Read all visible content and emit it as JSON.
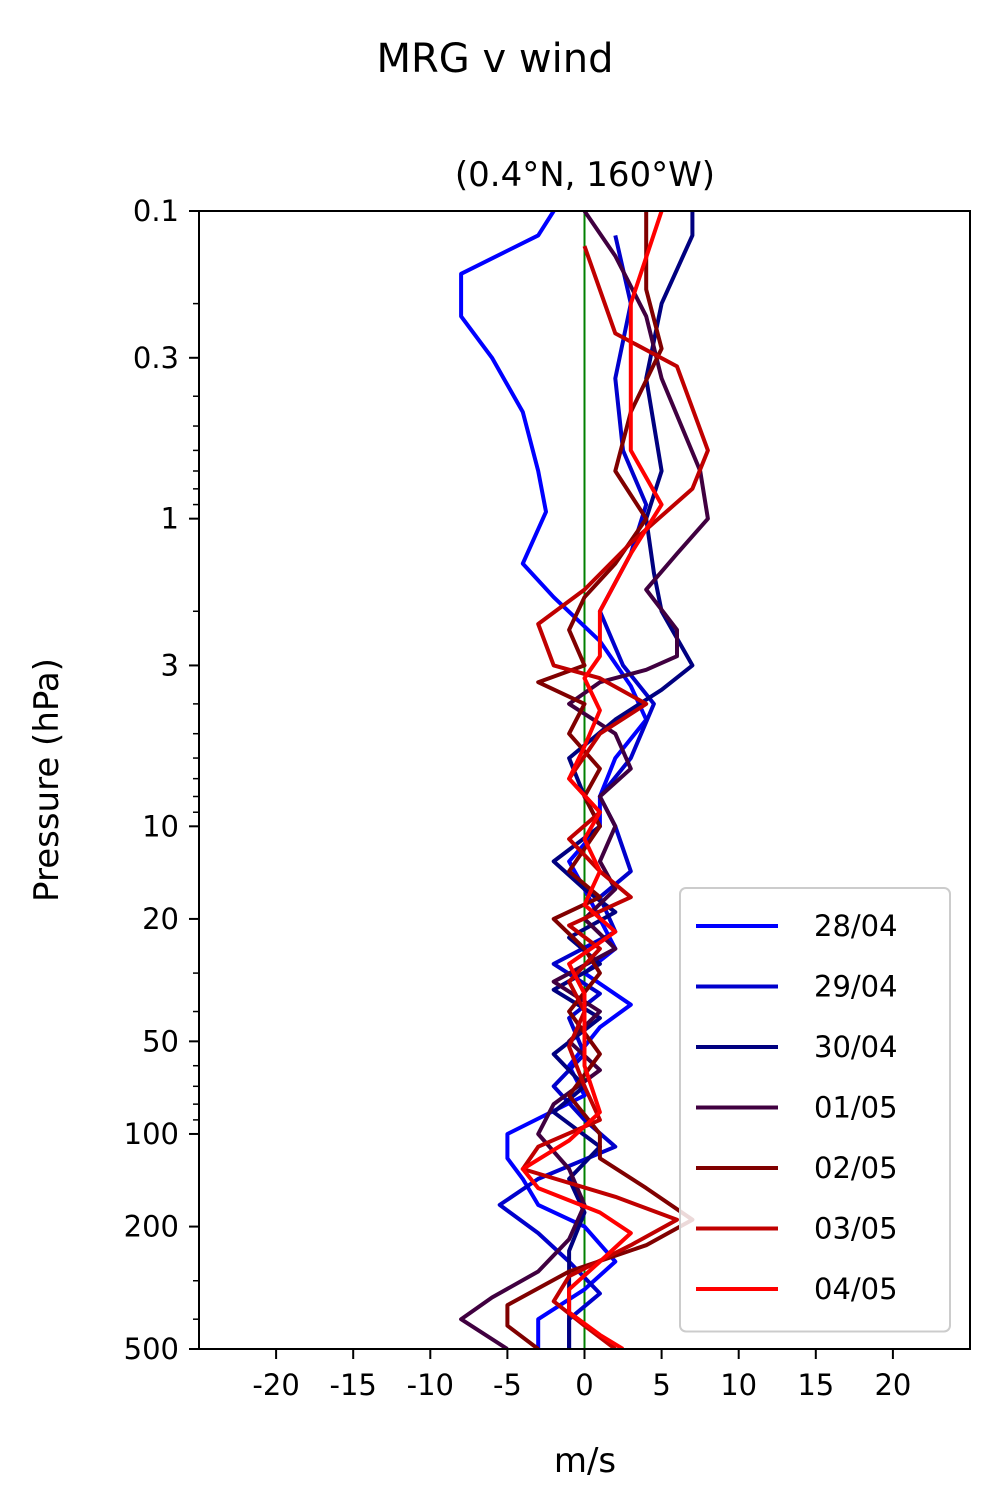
{
  "chart_data": {
    "type": "line",
    "suptitle": "MRG v wind",
    "title": "(0.4°N, 160°W)",
    "xlabel": "m/s",
    "ylabel": "Pressure (hPa)",
    "xlim": [
      -25,
      25
    ],
    "ylim": [
      500,
      0.1
    ],
    "yscale": "log",
    "xticks": [
      -20,
      -15,
      -10,
      -5,
      0,
      5,
      10,
      15,
      20
    ],
    "xtick_labels": [
      "-20",
      "-15",
      "-10",
      "-5",
      "0",
      "5",
      "10",
      "15",
      "20"
    ],
    "yticks": [
      0.1,
      0.3,
      1,
      3,
      10,
      20,
      50,
      100,
      200,
      500
    ],
    "ytick_labels": [
      "0.1",
      "0.3",
      "1",
      "3",
      "10",
      "20",
      "50",
      "100",
      "200",
      "500"
    ],
    "reference_line": {
      "x": 0,
      "color": "#008000"
    },
    "legend_position": "lower-right",
    "series": [
      {
        "name": "28/04",
        "color": "#0000ff",
        "points": [
          [
            -2,
            0.1
          ],
          [
            -3,
            0.12
          ],
          [
            -8,
            0.16
          ],
          [
            -8,
            0.22
          ],
          [
            -6,
            0.3
          ],
          [
            -4,
            0.45
          ],
          [
            -3,
            0.7
          ],
          [
            -2.5,
            0.95
          ],
          [
            -4,
            1.4
          ],
          [
            -2,
            1.8
          ],
          [
            1,
            2.5
          ],
          [
            3,
            3.5
          ],
          [
            4,
            4.5
          ],
          [
            2,
            6
          ],
          [
            1,
            8
          ],
          [
            1,
            10
          ],
          [
            -1,
            13
          ],
          [
            0,
            16
          ],
          [
            1,
            20
          ],
          [
            2,
            25
          ],
          [
            0,
            30
          ],
          [
            3,
            38
          ],
          [
            1,
            45
          ],
          [
            -1,
            60
          ],
          [
            0,
            75
          ],
          [
            -5,
            100
          ],
          [
            -5,
            120
          ],
          [
            -4,
            140
          ],
          [
            -3,
            170
          ],
          [
            0,
            200
          ],
          [
            2,
            260
          ],
          [
            0,
            320
          ],
          [
            -3,
            400
          ],
          [
            -3,
            500
          ]
        ]
      },
      {
        "name": "29/04",
        "color": "#0000cc",
        "points": [
          [
            2,
            0.12
          ],
          [
            3,
            0.2
          ],
          [
            2,
            0.35
          ],
          [
            2.5,
            0.6
          ],
          [
            4,
            0.9
          ],
          [
            3,
            1.3
          ],
          [
            1,
            2
          ],
          [
            2.5,
            3
          ],
          [
            4.5,
            4
          ],
          [
            3,
            6
          ],
          [
            1,
            8
          ],
          [
            2,
            10
          ],
          [
            3,
            14
          ],
          [
            1,
            17
          ],
          [
            2,
            22
          ],
          [
            -2,
            28
          ],
          [
            1,
            35
          ],
          [
            -1,
            42
          ],
          [
            0,
            55
          ],
          [
            -2,
            70
          ],
          [
            0,
            90
          ],
          [
            2,
            110
          ],
          [
            -3,
            140
          ],
          [
            -5.5,
            170
          ],
          [
            -3,
            210
          ],
          [
            -1,
            260
          ],
          [
            1,
            330
          ],
          [
            -1,
            400
          ],
          [
            -1,
            500
          ]
        ]
      },
      {
        "name": "30/04",
        "color": "#000080",
        "points": [
          [
            7,
            0.1
          ],
          [
            7,
            0.12
          ],
          [
            5,
            0.2
          ],
          [
            4,
            0.35
          ],
          [
            5,
            0.7
          ],
          [
            4,
            1
          ],
          [
            4.5,
            1.5
          ],
          [
            5,
            2
          ],
          [
            7,
            3
          ],
          [
            5,
            3.6
          ],
          [
            2,
            4.5
          ],
          [
            -1,
            6
          ],
          [
            0,
            8
          ],
          [
            1,
            10
          ],
          [
            -2,
            13
          ],
          [
            0,
            16
          ],
          [
            2,
            19
          ],
          [
            -1,
            23
          ],
          [
            1,
            28
          ],
          [
            -2,
            34
          ],
          [
            1,
            42
          ],
          [
            -2,
            55
          ],
          [
            0,
            70
          ],
          [
            -2,
            85
          ],
          [
            1,
            110
          ],
          [
            -1,
            140
          ],
          [
            0,
            180
          ],
          [
            -1,
            240
          ],
          [
            -1,
            320
          ],
          [
            -1,
            420
          ],
          [
            -1,
            500
          ]
        ]
      },
      {
        "name": "01/05",
        "color": "#400040",
        "points": [
          [
            0,
            0.1
          ],
          [
            2,
            0.14
          ],
          [
            4,
            0.22
          ],
          [
            5,
            0.35
          ],
          [
            7.5,
            0.7
          ],
          [
            8,
            1
          ],
          [
            6,
            1.3
          ],
          [
            4,
            1.7
          ],
          [
            6,
            2.3
          ],
          [
            6,
            2.8
          ],
          [
            4,
            3.1
          ],
          [
            1,
            3.4
          ],
          [
            -1,
            4
          ],
          [
            2,
            5
          ],
          [
            3,
            6.5
          ],
          [
            1,
            8
          ],
          [
            2,
            10
          ],
          [
            1,
            13
          ],
          [
            2,
            16
          ],
          [
            0,
            20
          ],
          [
            2,
            25
          ],
          [
            -2,
            32
          ],
          [
            1,
            40
          ],
          [
            -1,
            50
          ],
          [
            1,
            62
          ],
          [
            -2,
            80
          ],
          [
            -3,
            100
          ],
          [
            -1,
            130
          ],
          [
            0,
            170
          ],
          [
            -1,
            220
          ],
          [
            -3,
            280
          ],
          [
            -6,
            340
          ],
          [
            -8,
            400
          ],
          [
            -5,
            500
          ]
        ]
      },
      {
        "name": "02/05",
        "color": "#800000",
        "points": [
          [
            4,
            0.1
          ],
          [
            4,
            0.18
          ],
          [
            5,
            0.28
          ],
          [
            3,
            0.45
          ],
          [
            2,
            0.7
          ],
          [
            4,
            1
          ],
          [
            2,
            1.4
          ],
          [
            0,
            1.8
          ],
          [
            -1,
            2.3
          ],
          [
            0,
            3
          ],
          [
            -3,
            3.4
          ],
          [
            0,
            4
          ],
          [
            -1,
            5
          ],
          [
            1,
            6.5
          ],
          [
            0,
            8
          ],
          [
            1,
            10
          ],
          [
            -1,
            14
          ],
          [
            1,
            17
          ],
          [
            -2,
            20
          ],
          [
            0,
            25
          ],
          [
            1,
            30
          ],
          [
            -1,
            40
          ],
          [
            1,
            55
          ],
          [
            -1,
            75
          ],
          [
            1,
            100
          ],
          [
            1,
            120
          ],
          [
            4,
            150
          ],
          [
            7,
            190
          ],
          [
            4,
            230
          ],
          [
            -1,
            280
          ],
          [
            -5,
            360
          ],
          [
            -5,
            420
          ],
          [
            -3,
            500
          ]
        ]
      },
      {
        "name": "03/05",
        "color": "#c00000",
        "points": [
          [
            0,
            0.13
          ],
          [
            2,
            0.25
          ],
          [
            6,
            0.32
          ],
          [
            8,
            0.6
          ],
          [
            7,
            0.8
          ],
          [
            3,
            1.2
          ],
          [
            0,
            1.7
          ],
          [
            -3,
            2.2
          ],
          [
            -2,
            3
          ],
          [
            1,
            3.3
          ],
          [
            4,
            4
          ],
          [
            1,
            5
          ],
          [
            -1,
            7
          ],
          [
            1,
            9
          ],
          [
            -1,
            11
          ],
          [
            1,
            14
          ],
          [
            3,
            17
          ],
          [
            -1,
            21
          ],
          [
            1,
            25
          ],
          [
            -1,
            32
          ],
          [
            0,
            40
          ],
          [
            -1,
            52
          ],
          [
            0,
            70
          ],
          [
            1,
            90
          ],
          [
            -3,
            110
          ],
          [
            -4,
            130
          ],
          [
            2,
            160
          ],
          [
            6,
            190
          ],
          [
            3,
            230
          ],
          [
            -1,
            290
          ],
          [
            -2,
            350
          ],
          [
            0,
            420
          ],
          [
            2,
            500
          ]
        ]
      },
      {
        "name": "04/05",
        "color": "#ff0000",
        "points": [
          [
            5,
            0.1
          ],
          [
            3,
            0.2
          ],
          [
            3,
            0.35
          ],
          [
            3,
            0.6
          ],
          [
            5,
            0.9
          ],
          [
            3,
            1.3
          ],
          [
            1,
            2
          ],
          [
            1,
            2.8
          ],
          [
            0,
            3.3
          ],
          [
            1,
            4.2
          ],
          [
            0,
            5.5
          ],
          [
            -1,
            7
          ],
          [
            1,
            9
          ],
          [
            0,
            11
          ],
          [
            1,
            14
          ],
          [
            0,
            18
          ],
          [
            2,
            22
          ],
          [
            -1,
            28
          ],
          [
            0,
            35
          ],
          [
            0,
            45
          ],
          [
            0,
            60
          ],
          [
            1,
            85
          ],
          [
            -1,
            105
          ],
          [
            -4,
            130
          ],
          [
            -3,
            150
          ],
          [
            1,
            180
          ],
          [
            3,
            210
          ],
          [
            1,
            260
          ],
          [
            -1,
            320
          ],
          [
            -1,
            380
          ],
          [
            1,
            450
          ],
          [
            2.5,
            500
          ]
        ]
      }
    ]
  }
}
